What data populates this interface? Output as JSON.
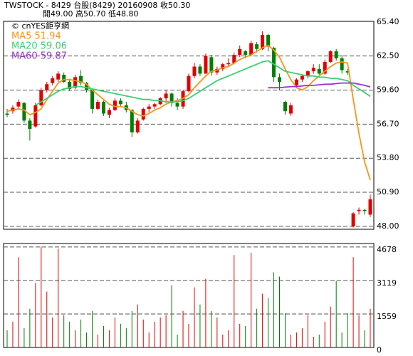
{
  "chart_data": {
    "type": "candlestick",
    "title": "TWSTOCK  - 8429  台股(8429) 20160908   收50.30",
    "subtitle": "開49.00   高50.70   低48.80",
    "source": "© cnYES鉅亨網",
    "up_color": "#e00000",
    "down_color": "#008000",
    "open": [
      57.6,
      57.8,
      58.2,
      58.5,
      57.0,
      56.5,
      58.3,
      59.6,
      60.2,
      60.5,
      60.9,
      60.3,
      59.8,
      60.8,
      60.2,
      59.6,
      58.0,
      58.6,
      57.5,
      57.9,
      58.7,
      58.3,
      57.9,
      56.0,
      57.1,
      58.0,
      58.2,
      58.4,
      58.9,
      59.3,
      58.5,
      58.2,
      59.5,
      60.8,
      61.6,
      61.0,
      62.4,
      61.1,
      61.4,
      61.8,
      61.9,
      62.6,
      62.9,
      62.6,
      63.5,
      63.1,
      64.3,
      63.2,
      60.7,
      58.6,
      57.6,
      60.0,
      60.5,
      60.8,
      61.2,
      61.4,
      61.0,
      62.0,
      62.9,
      62.3,
      61.2,
      48.0,
      49.3,
      49.4,
      49.0
    ],
    "high": [
      58.0,
      58.3,
      58.8,
      58.6,
      57.2,
      58.5,
      59.8,
      60.3,
      60.8,
      61.2,
      61.1,
      60.5,
      60.9,
      61.3,
      60.3,
      59.7,
      58.8,
      58.7,
      58.1,
      58.9,
      58.9,
      58.6,
      58.0,
      57.2,
      58.1,
      58.4,
      58.5,
      59.0,
      59.6,
      59.4,
      58.9,
      59.6,
      61.0,
      61.9,
      61.8,
      62.7,
      62.6,
      61.6,
      61.9,
      62.3,
      62.8,
      63.4,
      63.0,
      63.8,
      63.7,
      64.6,
      64.4,
      63.3,
      61.0,
      58.7,
      58.5,
      60.6,
      60.9,
      61.3,
      61.8,
      61.8,
      62.2,
      63.0,
      63.1,
      62.6,
      61.4,
      49.2,
      49.6,
      49.5,
      50.7
    ],
    "low": [
      57.3,
      57.6,
      58.0,
      56.8,
      55.3,
      56.4,
      58.2,
      59.4,
      60.0,
      60.3,
      60.2,
      59.5,
      59.7,
      60.0,
      59.4,
      57.6,
      57.9,
      57.4,
      57.2,
      57.8,
      58.2,
      57.7,
      55.6,
      55.9,
      57.0,
      57.7,
      58.0,
      58.3,
      58.5,
      58.2,
      57.9,
      58.0,
      59.4,
      60.6,
      60.8,
      61.0,
      60.8,
      60.9,
      61.2,
      61.6,
      61.8,
      62.4,
      62.3,
      62.5,
      62.8,
      63.0,
      62.9,
      60.3,
      59.6,
      57.5,
      57.4,
      59.9,
      60.3,
      60.6,
      61.0,
      60.9,
      60.9,
      61.9,
      62.1,
      61.0,
      60.9,
      47.9,
      49.0,
      49.0,
      48.8
    ],
    "close": [
      57.5,
      58.1,
      58.6,
      57.0,
      56.3,
      58.3,
      59.6,
      60.1,
      60.6,
      61.0,
      60.3,
      59.7,
      60.7,
      60.2,
      59.6,
      58.0,
      58.6,
      57.6,
      57.9,
      58.7,
      58.4,
      57.9,
      56.0,
      57.0,
      58.0,
      58.2,
      58.4,
      58.9,
      59.3,
      58.5,
      58.2,
      59.5,
      60.8,
      61.6,
      61.0,
      62.5,
      61.1,
      61.4,
      61.8,
      61.9,
      62.6,
      63.1,
      62.6,
      63.6,
      63.1,
      64.3,
      63.3,
      60.7,
      60.3,
      57.8,
      58.3,
      60.5,
      60.8,
      61.2,
      61.5,
      61.0,
      62.0,
      62.9,
      62.3,
      61.3,
      61.1,
      49.1,
      49.4,
      49.3,
      50.3
    ],
    "volume": [
      800,
      1200,
      4200,
      900,
      1800,
      3000,
      4700,
      2600,
      1400,
      4600,
      1500,
      1200,
      800,
      1300,
      700,
      1700,
      600,
      1000,
      800,
      1400,
      1100,
      900,
      1700,
      2000,
      1300,
      700,
      1200,
      1400,
      1500,
      2900,
      600,
      1700,
      1100,
      2800,
      2000,
      3200,
      1700,
      1400,
      600,
      800,
      4300,
      1100,
      1000,
      4400,
      1800,
      2500,
      2300,
      3500,
      3300,
      1600,
      600,
      700,
      900,
      1500,
      500,
      600,
      1200,
      1900,
      3100,
      700,
      1600,
      4200,
      1500,
      800,
      1800
    ],
    "series": [
      {
        "name": "MA5 51.94",
        "color": "#f7941d",
        "values": [
          57.8,
          57.9,
          58.0,
          57.9,
          57.5,
          57.7,
          58.0,
          58.8,
          59.5,
          60.2,
          60.5,
          60.5,
          60.4,
          60.3,
          60.1,
          59.6,
          59.2,
          58.8,
          58.4,
          58.2,
          58.2,
          58.1,
          57.8,
          57.5,
          57.4,
          57.6,
          57.9,
          58.1,
          58.4,
          58.6,
          58.7,
          58.9,
          59.2,
          59.8,
          60.3,
          60.8,
          61.2,
          61.3,
          61.5,
          61.6,
          61.9,
          62.2,
          62.4,
          62.6,
          62.9,
          63.2,
          63.4,
          63.0,
          62.4,
          61.4,
          60.5,
          59.8,
          59.6,
          59.9,
          60.4,
          60.8,
          61.2,
          61.6,
          61.9,
          62.0,
          61.9,
          58.8,
          55.9,
          53.5,
          51.94
        ]
      },
      {
        "name": "MA20 59.06",
        "color": "#3cd070",
        "values": [
          null,
          null,
          null,
          null,
          null,
          58.3,
          58.6,
          58.9,
          59.2,
          59.5,
          59.7,
          59.8,
          59.9,
          59.9,
          59.8,
          59.7,
          59.6,
          59.5,
          59.4,
          59.3,
          59.2,
          59.1,
          59.0,
          58.9,
          58.8,
          58.8,
          58.7,
          58.7,
          58.6,
          58.6,
          58.6,
          58.7,
          58.9,
          59.2,
          59.5,
          59.8,
          60.1,
          60.4,
          60.6,
          60.8,
          61.0,
          61.2,
          61.4,
          61.6,
          61.8,
          62.0,
          62.1,
          61.8,
          61.5,
          61.2,
          61.1,
          61.0,
          60.9,
          60.8,
          60.8,
          60.7,
          60.7,
          60.6,
          60.6,
          60.5,
          60.4,
          60.0,
          59.7,
          59.4,
          59.06
        ]
      },
      {
        "name": "MA60 59.87",
        "color": "#9933cc",
        "values": [
          null,
          null,
          null,
          null,
          null,
          null,
          null,
          null,
          null,
          null,
          null,
          null,
          null,
          null,
          null,
          null,
          null,
          null,
          null,
          null,
          null,
          null,
          null,
          null,
          null,
          null,
          null,
          null,
          null,
          null,
          null,
          null,
          null,
          null,
          null,
          null,
          null,
          null,
          null,
          null,
          null,
          null,
          null,
          null,
          null,
          null,
          59.8,
          59.8,
          59.8,
          59.85,
          59.9,
          59.9,
          59.95,
          60.0,
          60.0,
          60.05,
          60.1,
          60.1,
          60.15,
          60.2,
          60.2,
          60.2,
          60.1,
          60.0,
          59.87
        ]
      }
    ],
    "ylim": [
      47.75,
      65.45
    ],
    "yticks": [
      {
        "value": 48,
        "label": "48.00"
      },
      {
        "value": 50.9,
        "label": "50.90"
      },
      {
        "value": 53.8,
        "label": "53.80"
      },
      {
        "value": 56.7,
        "label": "56.70"
      },
      {
        "value": 59.6,
        "label": "59.60"
      },
      {
        "value": 62.5,
        "label": "62.50"
      },
      {
        "value": 65.4,
        "label": "65.40"
      }
    ],
    "volume_ylim": [
      0,
      4840
    ],
    "volume_yticks": [
      0,
      1559,
      3119,
      4678
    ],
    "grid": true
  }
}
